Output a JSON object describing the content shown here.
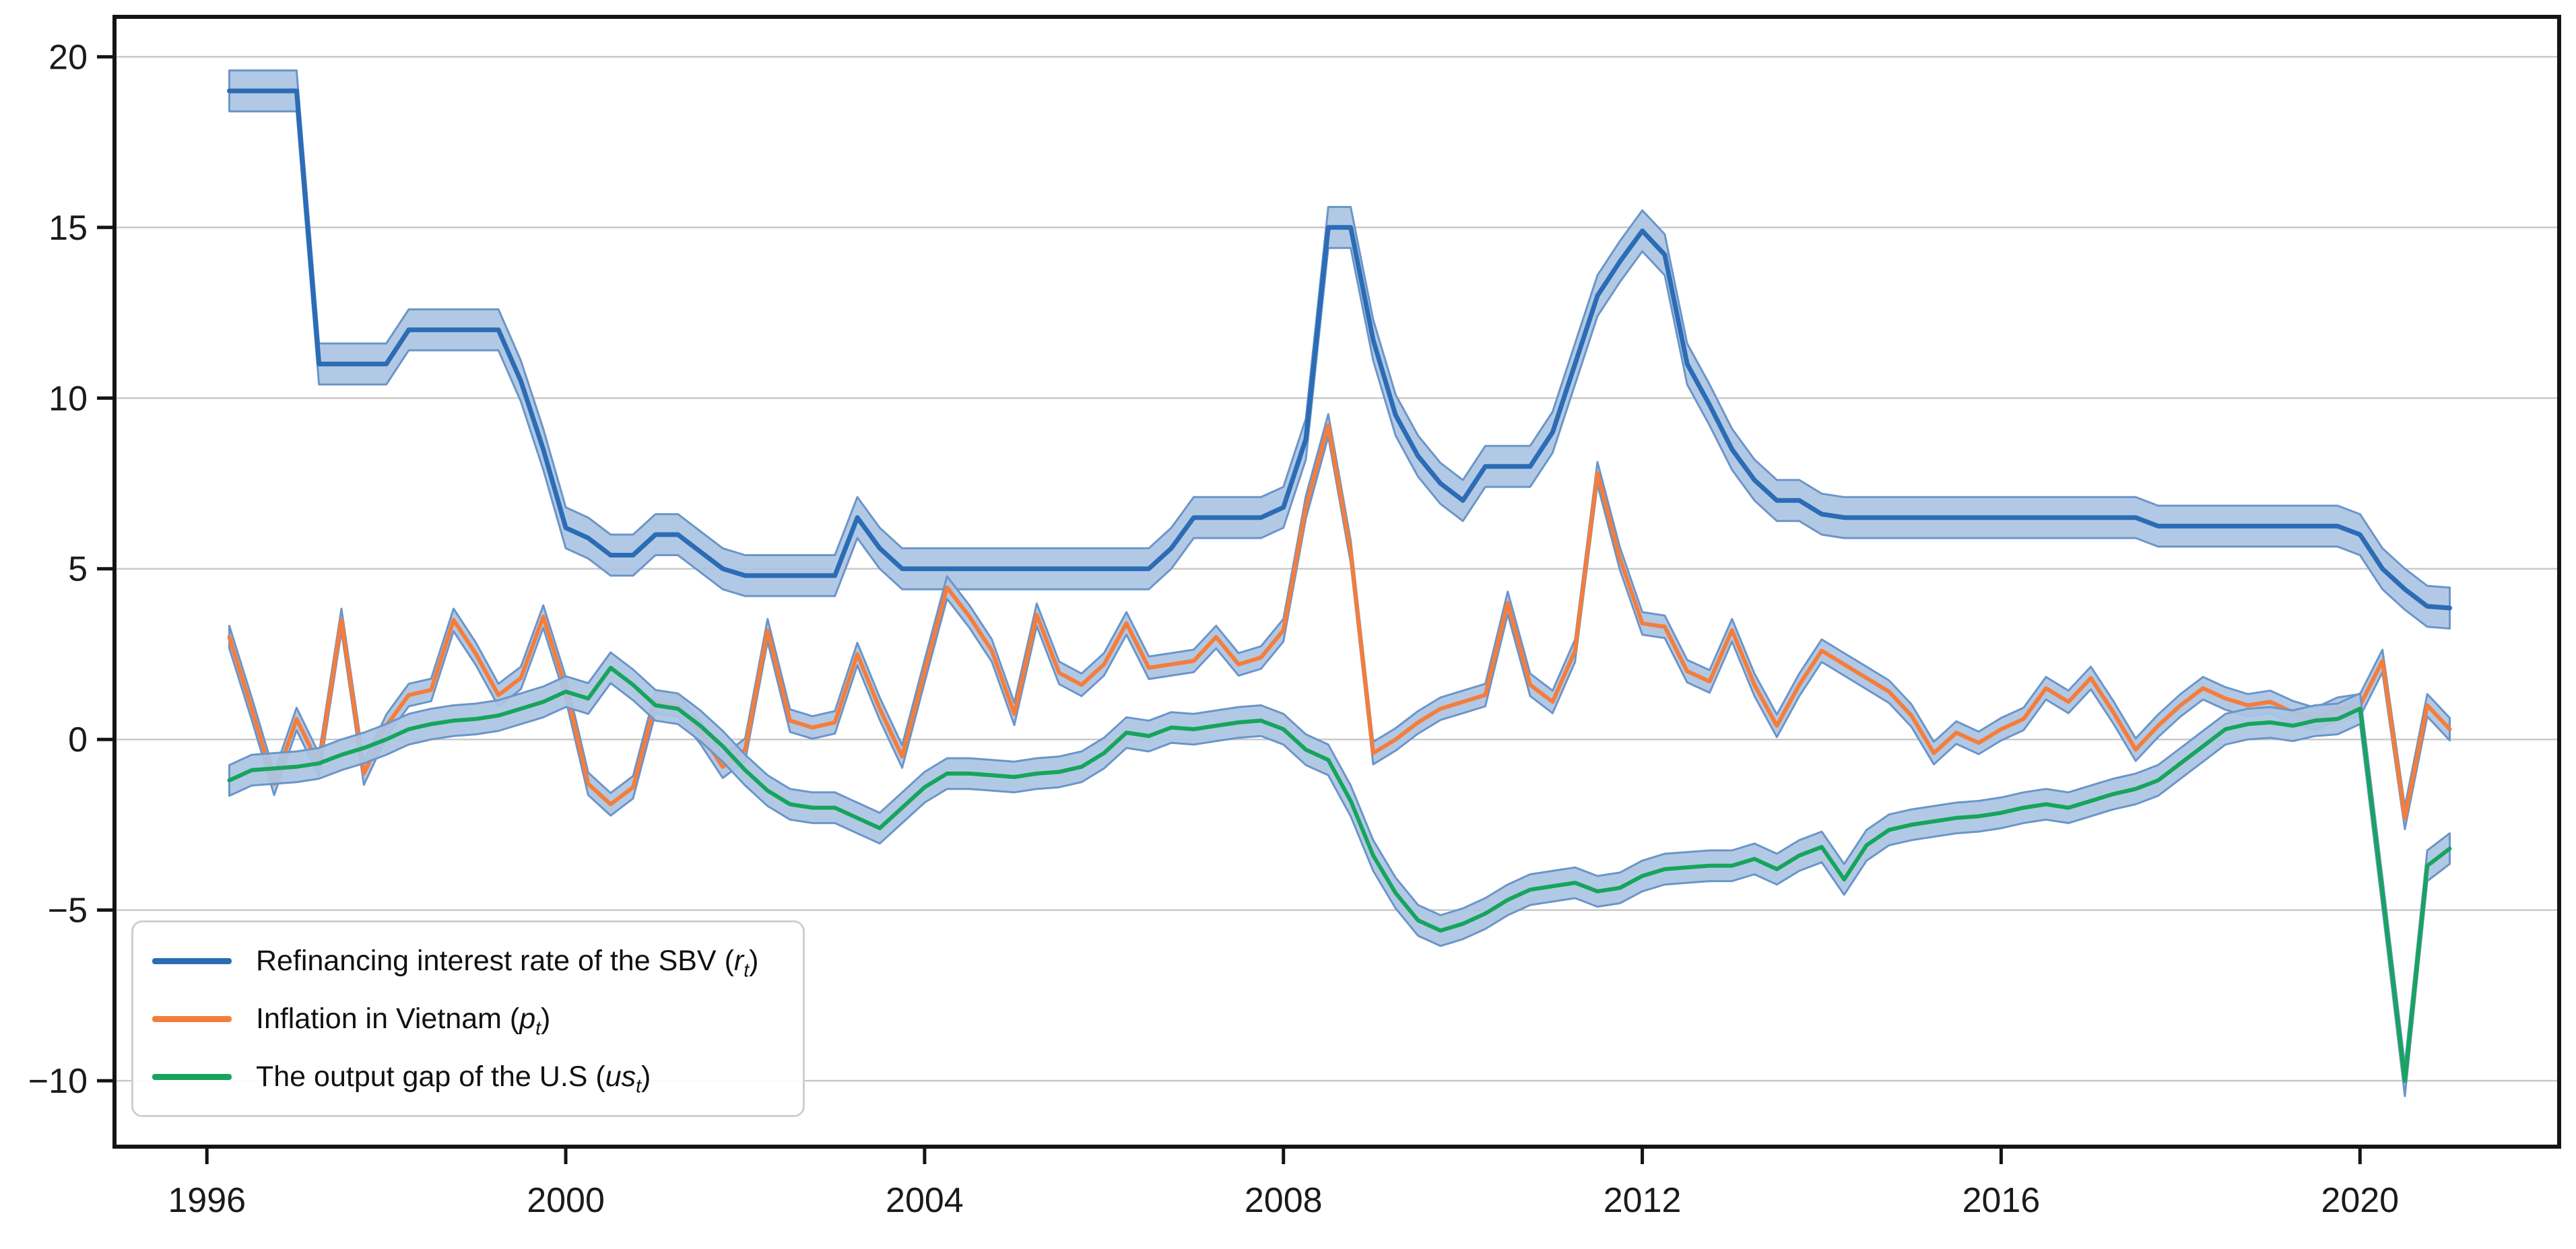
{
  "figure": {
    "background": "#ffffff",
    "frame_color": "#141414",
    "grid_color": "#c9c9c9",
    "tick_color": "#141414",
    "tick_label_color": "#1a1a1a",
    "band_color": "#abc4e3",
    "band_edge_color": "#6b95c9"
  },
  "legend": {
    "items": [
      {
        "label": "Refinancing interest rate of the SBV",
        "open": "(",
        "symbol": "r",
        "subscript": "t",
        "close": ")",
        "color": "#2b6cb5"
      },
      {
        "label": "Inflation in Vietnam",
        "open": "(",
        "symbol": "p",
        "subscript": "t",
        "close": ")",
        "color": "#f57d3c"
      },
      {
        "label": "The output gap of the U.S",
        "open": "(",
        "symbol": "us",
        "subscript": "t",
        "close": ")",
        "color": "#17a45c"
      }
    ]
  },
  "chart_data": {
    "type": "line",
    "title": "",
    "xlabel": "",
    "ylabel": "",
    "x_unit": "year, quarterly observations",
    "x_start": 1996.25,
    "x_step": 0.25,
    "xlim": [
      1994.97,
      2022.22
    ],
    "ylim": [
      -11.93,
      21.17
    ],
    "x_ticks": [
      1996,
      2000,
      2004,
      2008,
      2012,
      2016,
      2020
    ],
    "x_tick_labels": [
      "1996",
      "2000",
      "2004",
      "2008",
      "2012",
      "2016",
      "2020"
    ],
    "y_ticks": [
      20,
      15,
      10,
      5,
      0,
      -5,
      -10
    ],
    "y_tick_labels": [
      "20",
      "15",
      "10",
      "5",
      "0",
      "−5",
      "−10"
    ],
    "grid": "horizontal",
    "legend_position": "lower-left",
    "series": [
      {
        "name": "Refinancing interest rate of the SBV (rt)",
        "color": "#2b6cb5",
        "line_width": 7,
        "band_halfwidth": 0.6,
        "values": [
          19,
          19,
          19,
          19,
          11,
          11,
          11,
          11,
          12,
          12,
          12,
          12,
          12,
          10.5,
          8.5,
          6.2,
          5.9,
          5.4,
          5.4,
          6.0,
          6.0,
          5.5,
          5.0,
          4.8,
          4.8,
          4.8,
          4.8,
          4.8,
          6.5,
          5.6,
          5.0,
          5.0,
          5.0,
          5.0,
          5.0,
          5.0,
          5.0,
          5.0,
          5.0,
          5.0,
          5.0,
          5.0,
          5.6,
          6.5,
          6.5,
          6.5,
          6.5,
          6.8,
          8.8,
          15.0,
          15.0,
          11.7,
          9.5,
          8.3,
          7.5,
          7.0,
          8.0,
          8.0,
          8.0,
          9.0,
          11.0,
          13.0,
          14.0,
          14.9,
          14.2,
          11.0,
          9.8,
          8.5,
          7.6,
          7.0,
          7.0,
          6.6,
          6.5,
          6.5,
          6.5,
          6.5,
          6.5,
          6.5,
          6.5,
          6.5,
          6.5,
          6.5,
          6.5,
          6.5,
          6.5,
          6.5,
          6.25,
          6.25,
          6.25,
          6.25,
          6.25,
          6.25,
          6.25,
          6.25,
          6.25,
          6.0,
          5.0,
          4.4,
          3.9,
          3.85
        ]
      },
      {
        "name": "Inflation in Vietnam (pt)",
        "color": "#f57d3c",
        "line_width": 6,
        "band_halfwidth": 0.33,
        "values": [
          3.0,
          0.9,
          -1.3,
          0.6,
          -0.75,
          3.5,
          -1.0,
          0.4,
          1.3,
          1.45,
          3.5,
          2.5,
          1.3,
          1.8,
          3.6,
          1.5,
          -1.3,
          -1.9,
          -1.4,
          1.1,
          1.0,
          0.2,
          -0.8,
          -0.3,
          3.2,
          0.55,
          0.35,
          0.5,
          2.5,
          0.9,
          -0.5,
          2.0,
          4.45,
          3.6,
          2.6,
          0.75,
          3.65,
          1.95,
          1.6,
          2.2,
          3.4,
          2.1,
          2.2,
          2.3,
          3.0,
          2.2,
          2.4,
          3.2,
          6.8,
          9.2,
          5.5,
          -0.4,
          0.0,
          0.5,
          0.9,
          1.1,
          1.3,
          4.0,
          1.6,
          1.1,
          2.6,
          7.8,
          5.3,
          3.4,
          3.3,
          2.0,
          1.7,
          3.2,
          1.6,
          0.4,
          1.6,
          2.6,
          2.2,
          1.8,
          1.4,
          0.7,
          -0.4,
          0.2,
          -0.1,
          0.3,
          0.6,
          1.5,
          1.1,
          1.8,
          0.8,
          -0.3,
          0.4,
          1.0,
          1.5,
          1.2,
          1.0,
          1.1,
          0.8,
          0.6,
          0.9,
          1.0,
          2.3,
          -2.3,
          1.0,
          0.3
        ]
      },
      {
        "name": "The output gap of the U.S (ust)",
        "color": "#17a45c",
        "line_width": 6,
        "band_halfwidth": 0.45,
        "values": [
          -1.2,
          -0.9,
          -0.85,
          -0.8,
          -0.7,
          -0.45,
          -0.25,
          0.0,
          0.3,
          0.45,
          0.55,
          0.6,
          0.7,
          0.9,
          1.1,
          1.4,
          1.2,
          2.1,
          1.6,
          1.0,
          0.9,
          0.4,
          -0.2,
          -0.9,
          -1.5,
          -1.9,
          -2.0,
          -2.0,
          -2.3,
          -2.6,
          -2.0,
          -1.4,
          -1.0,
          -1.0,
          -1.05,
          -1.1,
          -1.0,
          -0.95,
          -0.8,
          -0.4,
          0.2,
          0.1,
          0.35,
          0.3,
          0.4,
          0.5,
          0.55,
          0.3,
          -0.3,
          -0.6,
          -1.8,
          -3.4,
          -4.5,
          -5.3,
          -5.6,
          -5.4,
          -5.1,
          -4.7,
          -4.4,
          -4.3,
          -4.2,
          -4.45,
          -4.35,
          -4.0,
          -3.8,
          -3.75,
          -3.7,
          -3.7,
          -3.5,
          -3.8,
          -3.4,
          -3.15,
          -4.1,
          -3.1,
          -2.65,
          -2.5,
          -2.4,
          -2.3,
          -2.25,
          -2.15,
          -2.0,
          -1.9,
          -2.0,
          -1.8,
          -1.6,
          -1.45,
          -1.2,
          -0.7,
          -0.2,
          0.3,
          0.45,
          0.5,
          0.4,
          0.55,
          0.6,
          0.9,
          -4.5,
          -10.0,
          -3.7,
          -3.2
        ]
      }
    ]
  }
}
